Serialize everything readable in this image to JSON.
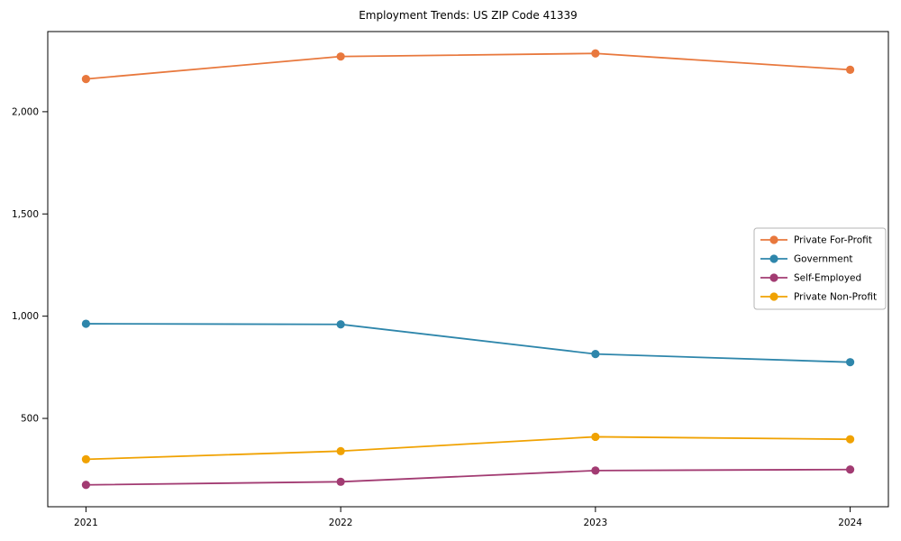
{
  "chart_data": {
    "type": "line",
    "title": "Employment Trends: US ZIP Code 41339",
    "xlabel": "",
    "ylabel": "",
    "x": [
      2021,
      2022,
      2023,
      2024
    ],
    "x_tick_labels": [
      "2021",
      "2022",
      "2023",
      "2024"
    ],
    "y_ticks": [
      500,
      1000,
      1500,
      2000
    ],
    "y_tick_labels": [
      "500",
      "1,000",
      "1,500",
      "2,000"
    ],
    "xlim": [
      2020.85,
      2024.15
    ],
    "ylim": [
      68,
      2392
    ],
    "grid": false,
    "legend_position": "center-right",
    "series": [
      {
        "name": "Private For-Profit",
        "color": "#E8783D",
        "values": [
          2160,
          2270,
          2285,
          2205
        ]
      },
      {
        "name": "Government",
        "color": "#2E86AB",
        "values": [
          963,
          960,
          815,
          775
        ]
      },
      {
        "name": "Self-Employed",
        "color": "#A23B72",
        "values": [
          175,
          190,
          245,
          250
        ]
      },
      {
        "name": "Private Non-Profit",
        "color": "#F0A202",
        "values": [
          300,
          340,
          410,
          398
        ]
      }
    ],
    "colors": {
      "spine": "#000000",
      "background": "#ffffff",
      "legend_border": "#b5b5b5",
      "legend_background": "#ffffff"
    }
  }
}
